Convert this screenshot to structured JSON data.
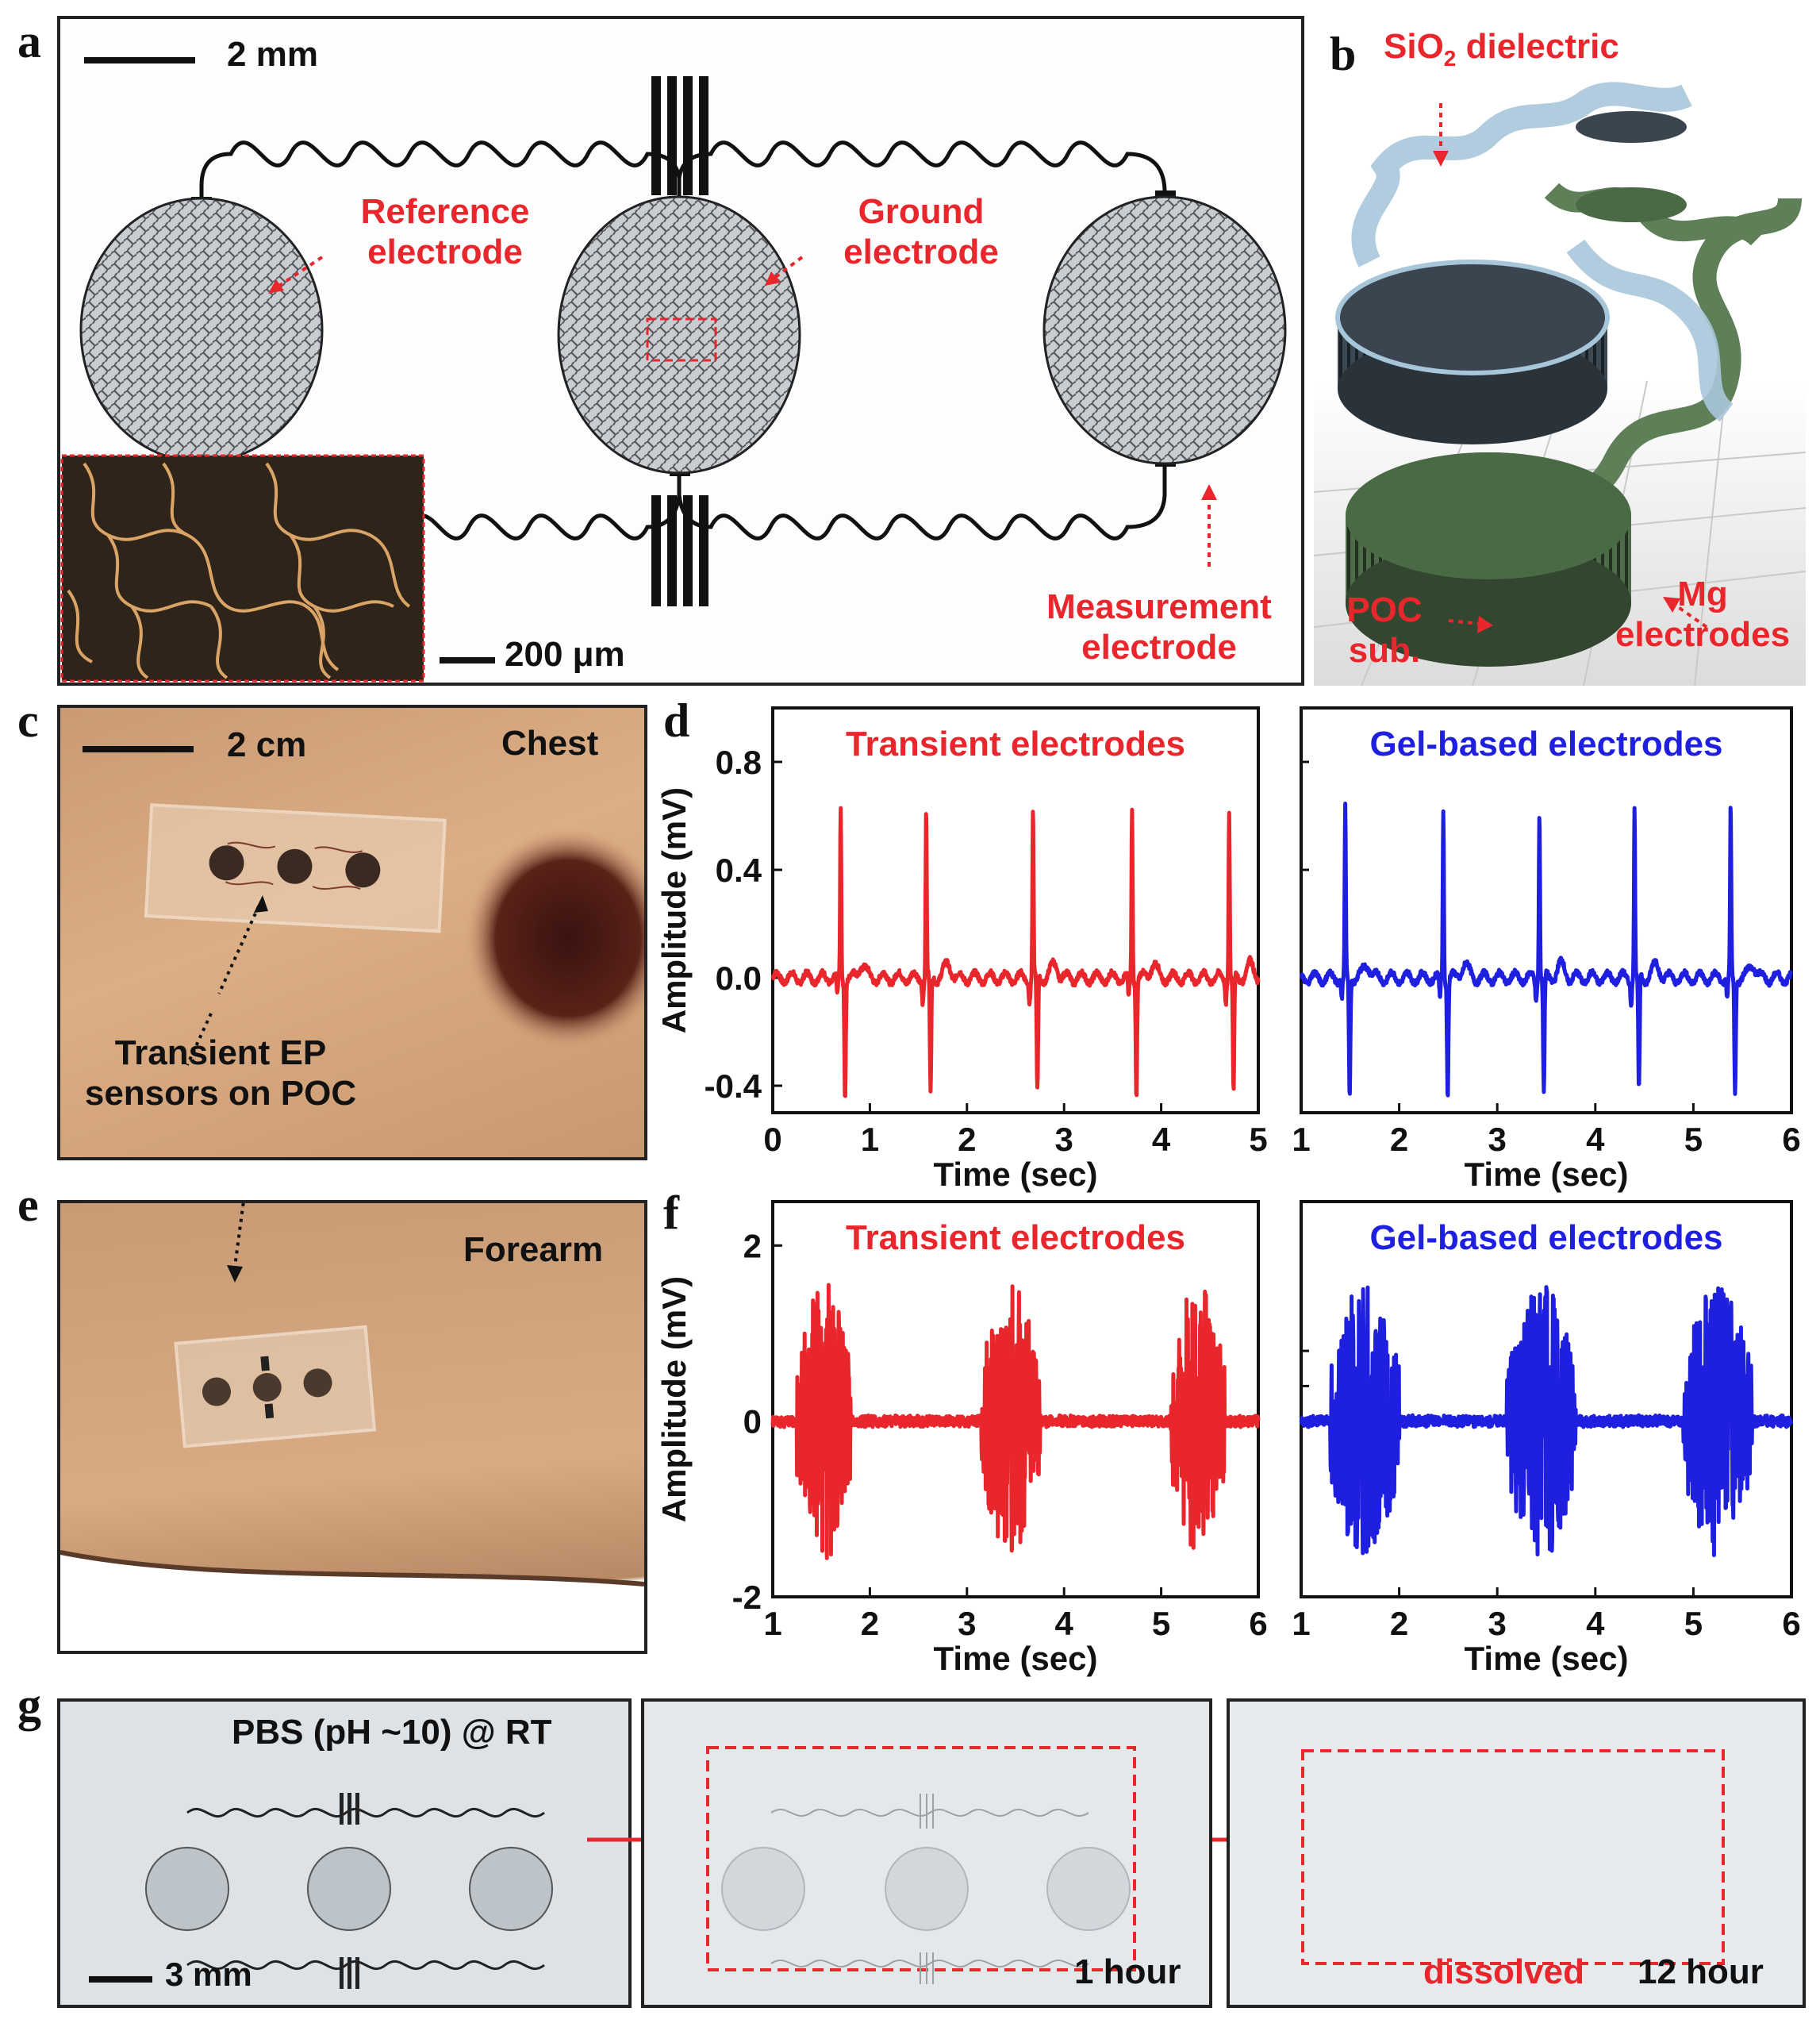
{
  "labels": {
    "a": "a",
    "b": "b",
    "c": "c",
    "d": "d",
    "e": "e",
    "f": "f",
    "g": "g"
  },
  "panel_a": {
    "scale_main": "2 mm",
    "scale_inset": "200 μm",
    "reference": [
      "Reference",
      "electrode"
    ],
    "ground": [
      "Ground",
      "electrode"
    ],
    "measurement": [
      "Measurement",
      "electrode"
    ]
  },
  "panel_b": {
    "sio2_prefix": "SiO",
    "sio2_sub": "2",
    "sio2_suffix": " dielectric",
    "mg": [
      "Mg",
      "electrodes"
    ],
    "poc": [
      "POC",
      "sub."
    ]
  },
  "panel_c": {
    "scale": "2 cm",
    "site": "Chest",
    "sensors": [
      "Transient EP",
      "sensors on POC"
    ]
  },
  "panel_e": {
    "site": "Forearm"
  },
  "panel_g": {
    "condition": "PBS (pH ~10) @ RT",
    "scale": "3 mm",
    "time1": "1 hour",
    "dissolved": "dissolved",
    "time2": "12 hour"
  },
  "colors": {
    "red": "#e8262b",
    "blue": "#1f1fe0",
    "frame": "#222222"
  },
  "chart_data": [
    {
      "type": "line",
      "panel": "d-left",
      "title": "Transient electrodes",
      "ylabel": "Amplitude (mV)",
      "xlabel": "Time (sec)",
      "xlim": [
        0,
        5
      ],
      "ylim": [
        -0.5,
        1.0
      ],
      "xticks": [
        "0",
        "1",
        "2",
        "3",
        "4",
        "5"
      ],
      "yticks": [
        "-0.4",
        "0.0",
        "0.4",
        "0.8"
      ],
      "ytick_values": [
        -0.4,
        0.0,
        0.4,
        0.8
      ],
      "color": "#e8262b",
      "signal": "ecg",
      "peaks": [
        0.7,
        1.58,
        2.68,
        3.7,
        4.7
      ],
      "peak_amplitude": 0.62,
      "trough_amplitude": -0.43
    },
    {
      "type": "line",
      "panel": "d-right",
      "title": "Gel-based electrodes",
      "xlabel": "Time (sec)",
      "xlim": [
        1,
        6
      ],
      "ylim": [
        -0.5,
        1.0
      ],
      "xticks": [
        "1",
        "2",
        "3",
        "4",
        "5",
        "6"
      ],
      "color": "#1f1fe0",
      "signal": "ecg",
      "peaks": [
        1.45,
        2.45,
        3.43,
        4.4,
        5.38
      ],
      "peak_amplitude": 0.62,
      "trough_amplitude": -0.43
    },
    {
      "type": "line",
      "panel": "f-left",
      "title": "Transient electrodes",
      "ylabel": "Amplitude (mV)",
      "xlabel": "Time (sec)",
      "xlim": [
        1,
        6
      ],
      "ylim": [
        -2,
        2.5
      ],
      "xticks": [
        "1",
        "2",
        "3",
        "4",
        "5",
        "6"
      ],
      "yticks": [
        "-2",
        "0",
        "2"
      ],
      "ytick_values": [
        -2,
        0,
        2
      ],
      "color": "#e8262b",
      "signal": "emg",
      "bursts": [
        {
          "start": 1.25,
          "end": 1.8
        },
        {
          "start": 3.15,
          "end": 3.75
        },
        {
          "start": 5.1,
          "end": 5.65
        }
      ],
      "burst_amplitude": 1.6
    },
    {
      "type": "line",
      "panel": "f-right",
      "title": "Gel-based electrodes",
      "xlabel": "Time (sec)",
      "xlim": [
        1,
        6
      ],
      "ylim": [
        -2,
        2.5
      ],
      "xticks": [
        "1",
        "2",
        "3",
        "4",
        "5",
        "6"
      ],
      "color": "#1f1fe0",
      "signal": "emg",
      "bursts": [
        {
          "start": 1.3,
          "end": 2.0
        },
        {
          "start": 3.1,
          "end": 3.8
        },
        {
          "start": 4.9,
          "end": 5.6
        }
      ],
      "burst_amplitude": 1.6
    }
  ]
}
